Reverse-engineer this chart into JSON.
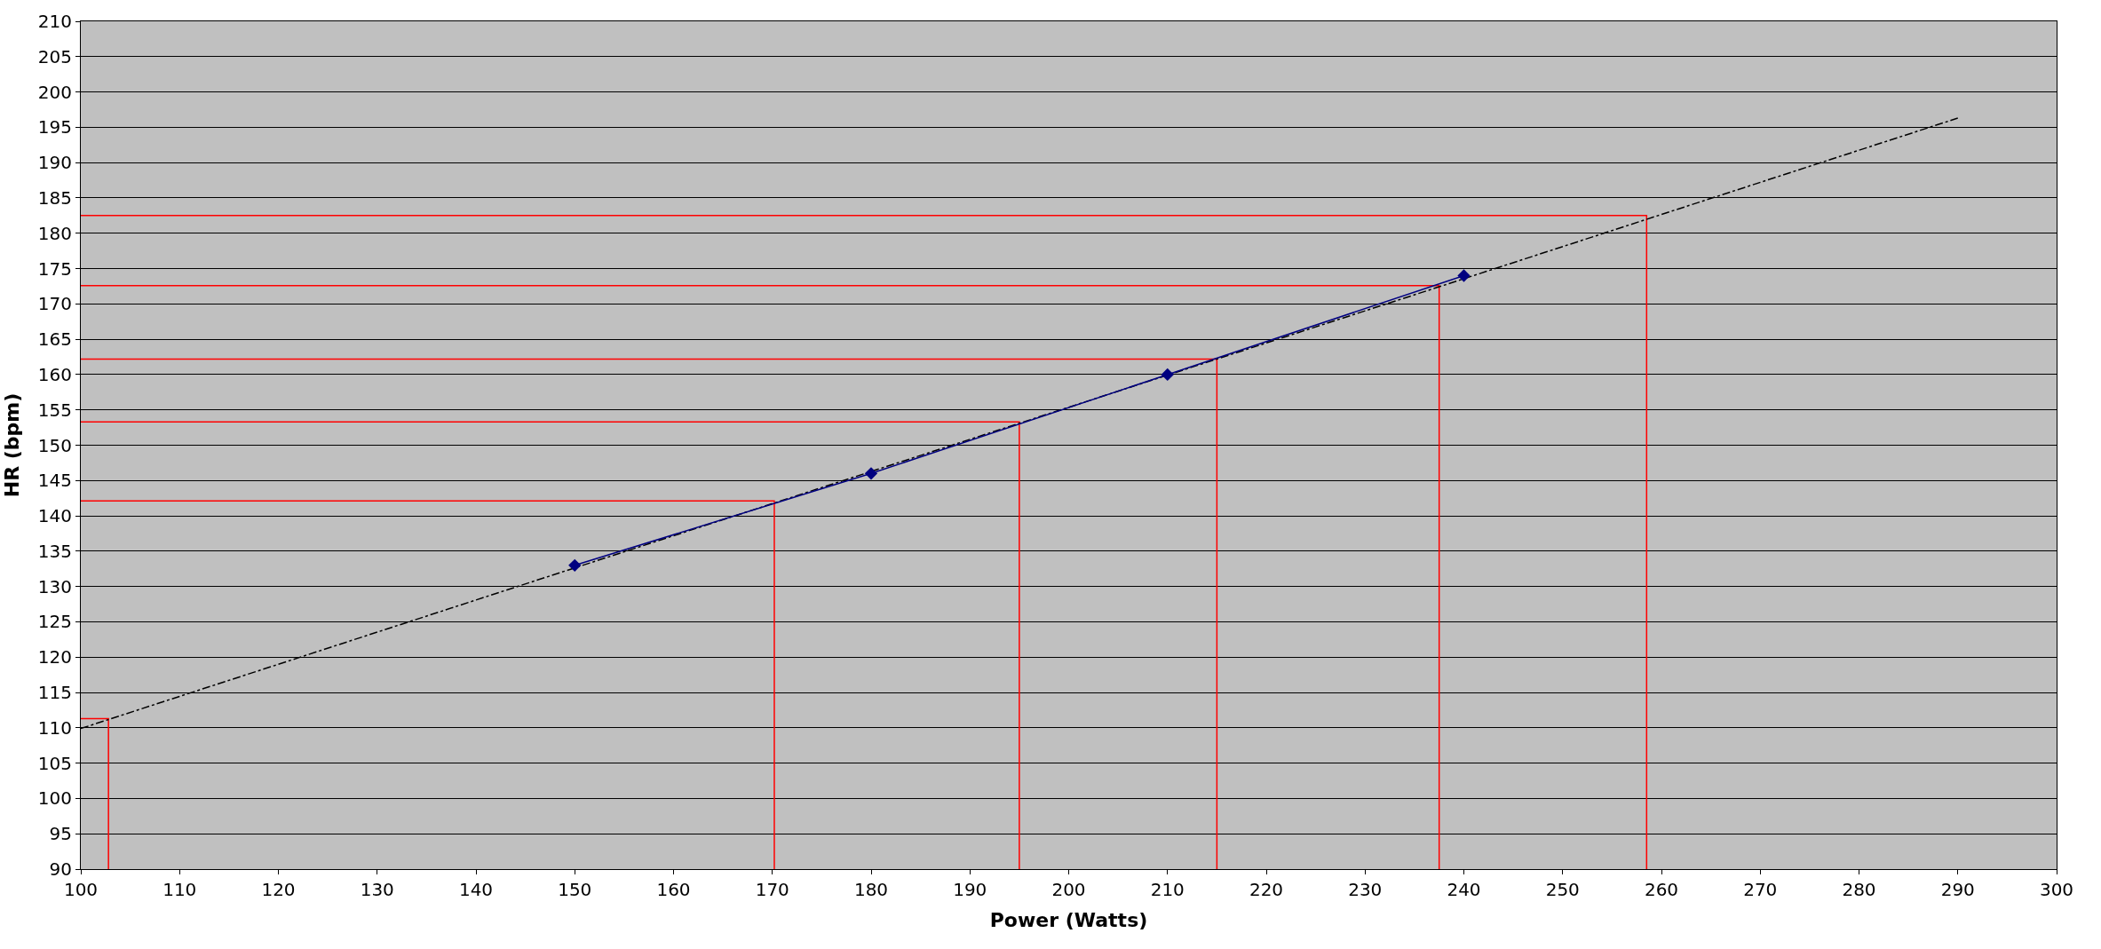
{
  "chart_data": {
    "type": "line",
    "xlabel": "Power (Watts)",
    "ylabel": "HR (bpm)",
    "xlim": [
      100,
      300
    ],
    "xticks": [
      100,
      110,
      120,
      130,
      140,
      150,
      160,
      170,
      180,
      190,
      200,
      210,
      220,
      230,
      240,
      250,
      260,
      270,
      280,
      290,
      300
    ],
    "ylim": [
      90,
      210
    ],
    "yticks": [
      90,
      95,
      100,
      105,
      110,
      115,
      120,
      125,
      130,
      135,
      140,
      145,
      150,
      155,
      160,
      165,
      170,
      175,
      180,
      185,
      190,
      195,
      200,
      205,
      210
    ],
    "grid": "y",
    "series": [
      {
        "color": "#ff0000",
        "line_style": "solid",
        "marker": "none",
        "x": [
          100,
          102.8,
          102.8
        ],
        "values": [
          111.3,
          111.3,
          90
        ]
      },
      {
        "color": "#ff0000",
        "line_style": "solid",
        "marker": "none",
        "x": [
          100,
          170.2,
          170.2
        ],
        "values": [
          142.1,
          142.1,
          90
        ]
      },
      {
        "color": "#ff0000",
        "line_style": "solid",
        "marker": "none",
        "x": [
          100,
          195,
          195
        ],
        "values": [
          153.3,
          153.3,
          90
        ]
      },
      {
        "color": "#ff0000",
        "line_style": "solid",
        "marker": "none",
        "x": [
          100,
          215,
          215
        ],
        "values": [
          162.2,
          162.2,
          90
        ]
      },
      {
        "color": "#ff0000",
        "line_style": "solid",
        "marker": "none",
        "x": [
          100,
          237.5,
          237.5
        ],
        "values": [
          172.6,
          172.6,
          90
        ]
      },
      {
        "color": "#ff0000",
        "line_style": "solid",
        "marker": "none",
        "x": [
          100,
          258.5,
          258.5
        ],
        "values": [
          182.5,
          182.5,
          90
        ]
      },
      {
        "color": "#000000",
        "line_style": "dashed",
        "marker": "none",
        "x": [
          100,
          290
        ],
        "values": [
          109.9,
          196.3
        ]
      },
      {
        "color": "#000080",
        "line_style": "solid",
        "marker": "diamond",
        "x": [
          150,
          180,
          210,
          240
        ],
        "values": [
          133,
          146,
          160,
          174
        ]
      }
    ]
  }
}
